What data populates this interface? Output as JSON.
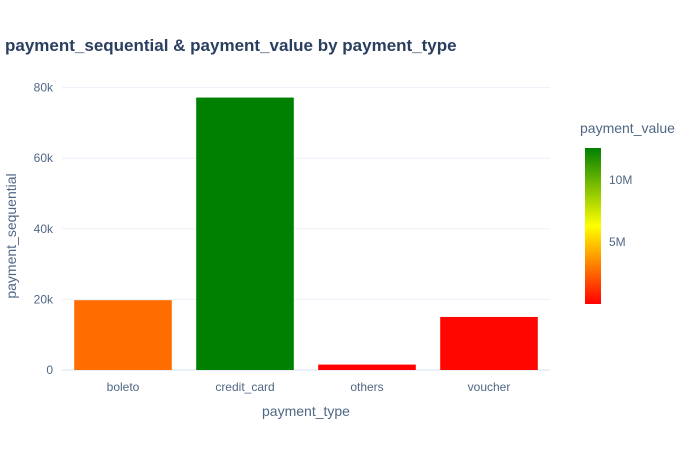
{
  "chart_data": {
    "type": "bar",
    "title": "payment_sequential & payment_value by payment_type",
    "xlabel": "payment_type",
    "ylabel": "payment_sequential",
    "categories": [
      "boleto",
      "credit_card",
      "others",
      "voucher"
    ],
    "values": [
      19784,
      77190,
      1530,
      15030
    ],
    "color_values": [
      4200000,
      12600000,
      130000,
      460000
    ],
    "ylim": [
      0,
      85000
    ],
    "yticks": [
      0,
      20000,
      40000,
      60000,
      80000
    ],
    "ytick_labels": [
      "0",
      "20k",
      "40k",
      "60k",
      "80k"
    ],
    "grid": true,
    "colorbar": {
      "title": "payment_value",
      "range": [
        0,
        12600000
      ],
      "ticks": [
        5000000,
        10000000
      ],
      "tick_labels": [
        "5M",
        "10M"
      ],
      "colorscale": [
        "#ff0000",
        "#ffff00",
        "#008000"
      ]
    },
    "bar_colors": [
      "#ff6d00",
      "#008000",
      "#ff0000",
      "#ff0700"
    ]
  }
}
